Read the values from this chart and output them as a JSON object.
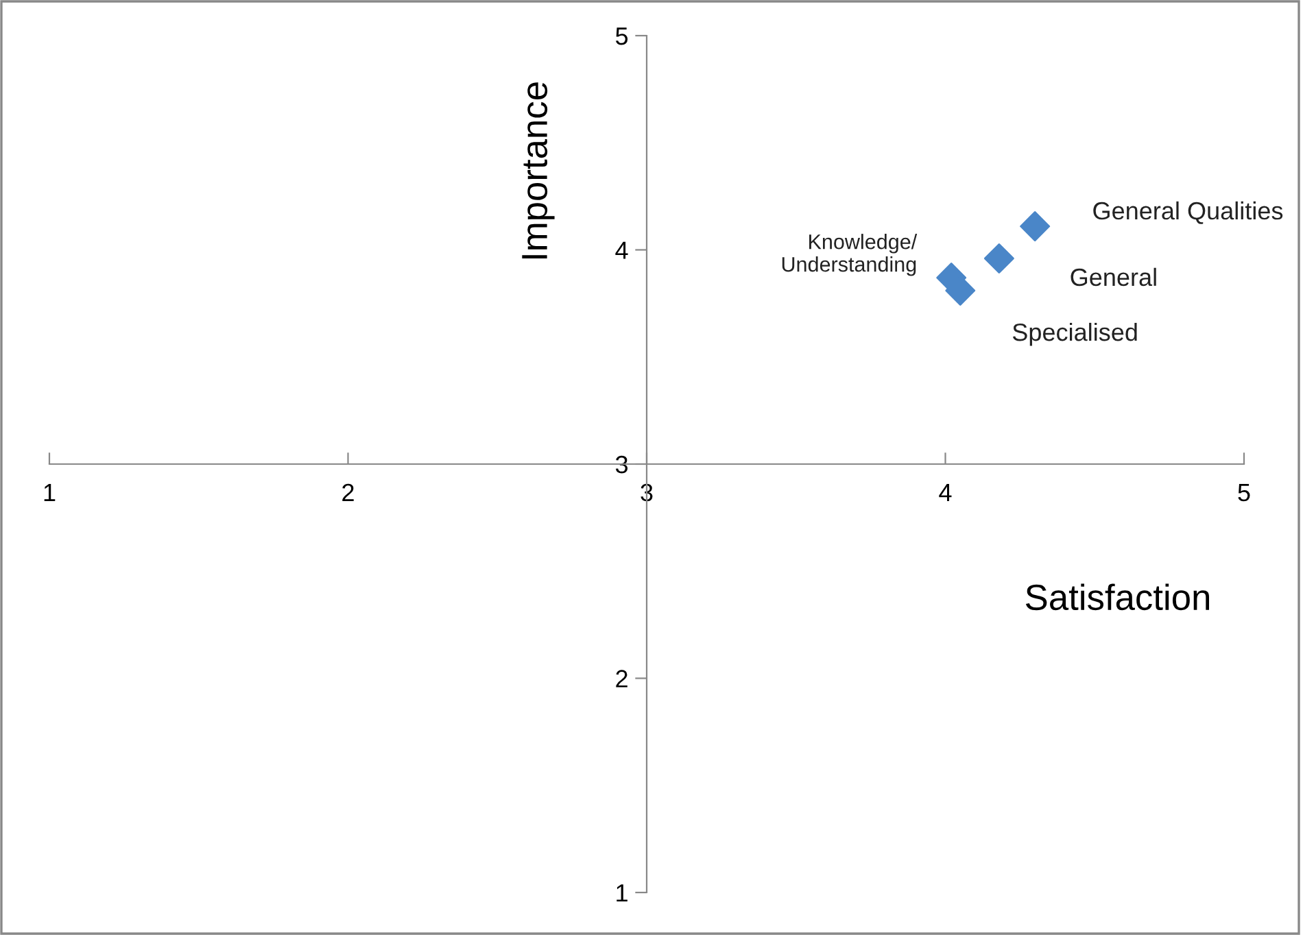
{
  "chart_data": {
    "type": "scatter",
    "xlabel": "Satisfaction",
    "ylabel": "Importance",
    "x": [
      4.3,
      4.18,
      4.02,
      4.05
    ],
    "series": [
      {
        "color": "#4a86c8",
        "values": [
          4.11,
          3.96,
          3.87,
          3.81
        ]
      }
    ],
    "marker": "diamond",
    "grid": false,
    "xlim": [
      1,
      5
    ],
    "xticks": [
      1,
      2,
      3,
      4,
      5
    ],
    "ylim": [
      1,
      5
    ],
    "yticks": [
      1,
      2,
      3,
      4,
      5
    ],
    "annotations": [
      {
        "text": "General Qualities",
        "x": 4.3,
        "y": 4.11
      },
      {
        "text": "General",
        "x": 4.18,
        "y": 3.96
      },
      {
        "text": "Knowledge/\nUnderstanding",
        "x": 4.02,
        "y": 3.87
      },
      {
        "text": "Specialised",
        "x": 4.05,
        "y": 3.81
      }
    ]
  }
}
